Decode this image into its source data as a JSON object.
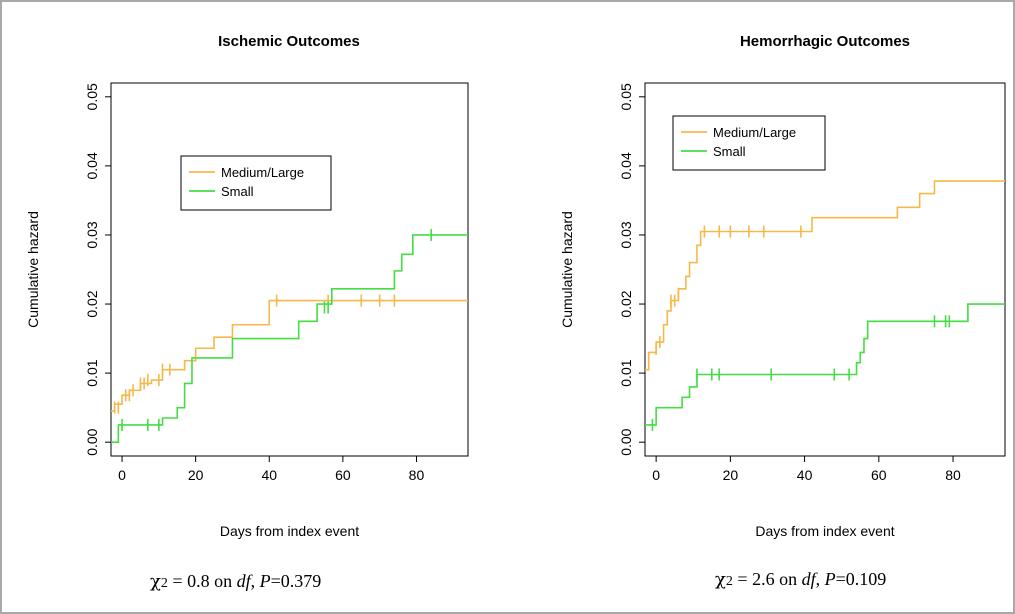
{
  "chart_data": [
    {
      "type": "line",
      "title": "Ischemic Outcomes",
      "xlabel": "Days from index event",
      "ylabel": "Cumulative hazard",
      "xlim": [
        -3,
        94
      ],
      "ylim": [
        -0.002,
        0.052
      ],
      "xticks": [
        0,
        20,
        40,
        60,
        80
      ],
      "yticks": [
        "0.00",
        "0.01",
        "0.02",
        "0.03",
        "0.04",
        "0.05"
      ],
      "legend": {
        "position": "upper-left",
        "entries": [
          "Medium/Large",
          "Small"
        ]
      },
      "grid": false,
      "series": [
        {
          "name": "Medium/Large",
          "color": "#f5b94b",
          "step_x": [
            -3,
            -2,
            0,
            2,
            5,
            8,
            11,
            17,
            20,
            25,
            30,
            40,
            94
          ],
          "step_y": [
            0.0045,
            0.0055,
            0.0068,
            0.0075,
            0.0085,
            0.009,
            0.0105,
            0.0118,
            0.0136,
            0.0152,
            0.017,
            0.0205,
            0.0205
          ],
          "censor_x": [
            -2,
            -1,
            1,
            2,
            3,
            5,
            6,
            7,
            10,
            11,
            13,
            42,
            56,
            65,
            70,
            74
          ],
          "censor_y": [
            0.005,
            0.005,
            0.0068,
            0.0068,
            0.0075,
            0.0085,
            0.0085,
            0.009,
            0.009,
            0.0105,
            0.0105,
            0.0205,
            0.0205,
            0.0205,
            0.0205,
            0.0205
          ]
        },
        {
          "name": "Small",
          "color": "#44dd44",
          "step_x": [
            -3,
            -1,
            11,
            15,
            17,
            19,
            30,
            48,
            53,
            57,
            74,
            76,
            79,
            94
          ],
          "step_y": [
            0,
            0.0025,
            0.0035,
            0.005,
            0.0085,
            0.0122,
            0.015,
            0.0175,
            0.02,
            0.0222,
            0.0248,
            0.0272,
            0.03,
            0.03
          ],
          "censor_x": [
            0,
            7,
            10,
            55,
            56,
            84
          ],
          "censor_y": [
            0.0025,
            0.0025,
            0.0025,
            0.0195,
            0.0195,
            0.03
          ]
        }
      ]
    },
    {
      "type": "line",
      "title": "Hemorrhagic Outcomes",
      "xlabel": "Days from index event",
      "ylabel": "Cumulative hazard",
      "xlim": [
        -3,
        94
      ],
      "ylim": [
        -0.002,
        0.052
      ],
      "xticks": [
        0,
        20,
        40,
        60,
        80
      ],
      "yticks": [
        "0.00",
        "0.01",
        "0.02",
        "0.03",
        "0.04",
        "0.05"
      ],
      "legend": {
        "position": "upper-left",
        "entries": [
          "Medium/Large",
          "Small"
        ]
      },
      "grid": false,
      "series": [
        {
          "name": "Medium/Large",
          "color": "#f5b94b",
          "step_x": [
            -3,
            -2,
            0,
            2,
            3,
            4,
            6,
            8,
            9,
            11,
            12,
            14,
            42,
            65,
            71,
            75,
            94
          ],
          "step_y": [
            0.0105,
            0.013,
            0.0145,
            0.017,
            0.019,
            0.0205,
            0.0222,
            0.024,
            0.026,
            0.0285,
            0.0305,
            0.0305,
            0.0325,
            0.034,
            0.036,
            0.0378,
            0.0378
          ],
          "censor_x": [
            -2,
            0,
            1,
            4,
            5,
            6,
            13,
            17,
            20,
            25,
            29,
            39
          ],
          "censor_y": [
            0.012,
            0.0135,
            0.0145,
            0.0205,
            0.0205,
            0.0215,
            0.0305,
            0.0305,
            0.0305,
            0.0305,
            0.0305,
            0.0305
          ]
        },
        {
          "name": "Small",
          "color": "#44dd44",
          "step_x": [
            -3,
            0,
            7,
            9,
            11,
            54,
            55,
            56,
            57,
            84,
            94
          ],
          "step_y": [
            0.0025,
            0.005,
            0.0065,
            0.008,
            0.0098,
            0.0115,
            0.013,
            0.015,
            0.0175,
            0.02,
            0.02
          ],
          "censor_x": [
            -1,
            11,
            15,
            17,
            31,
            48,
            52,
            75,
            78,
            79
          ],
          "censor_y": [
            0.0025,
            0.0098,
            0.0098,
            0.0098,
            0.0098,
            0.0098,
            0.0098,
            0.0175,
            0.0175,
            0.0175
          ]
        }
      ]
    }
  ],
  "stats": [
    {
      "chi": "χ",
      "sub": "2",
      "text_a": " = 0.8 on ",
      "df": "df",
      "text_b": ", ",
      "p": "P",
      "text_c": "=0.379"
    },
    {
      "chi": "χ",
      "sub": "2",
      "text_a": " = 2.6 on ",
      "df": "df",
      "text_b": ", ",
      "p": "P",
      "text_c": "=0.109"
    }
  ]
}
